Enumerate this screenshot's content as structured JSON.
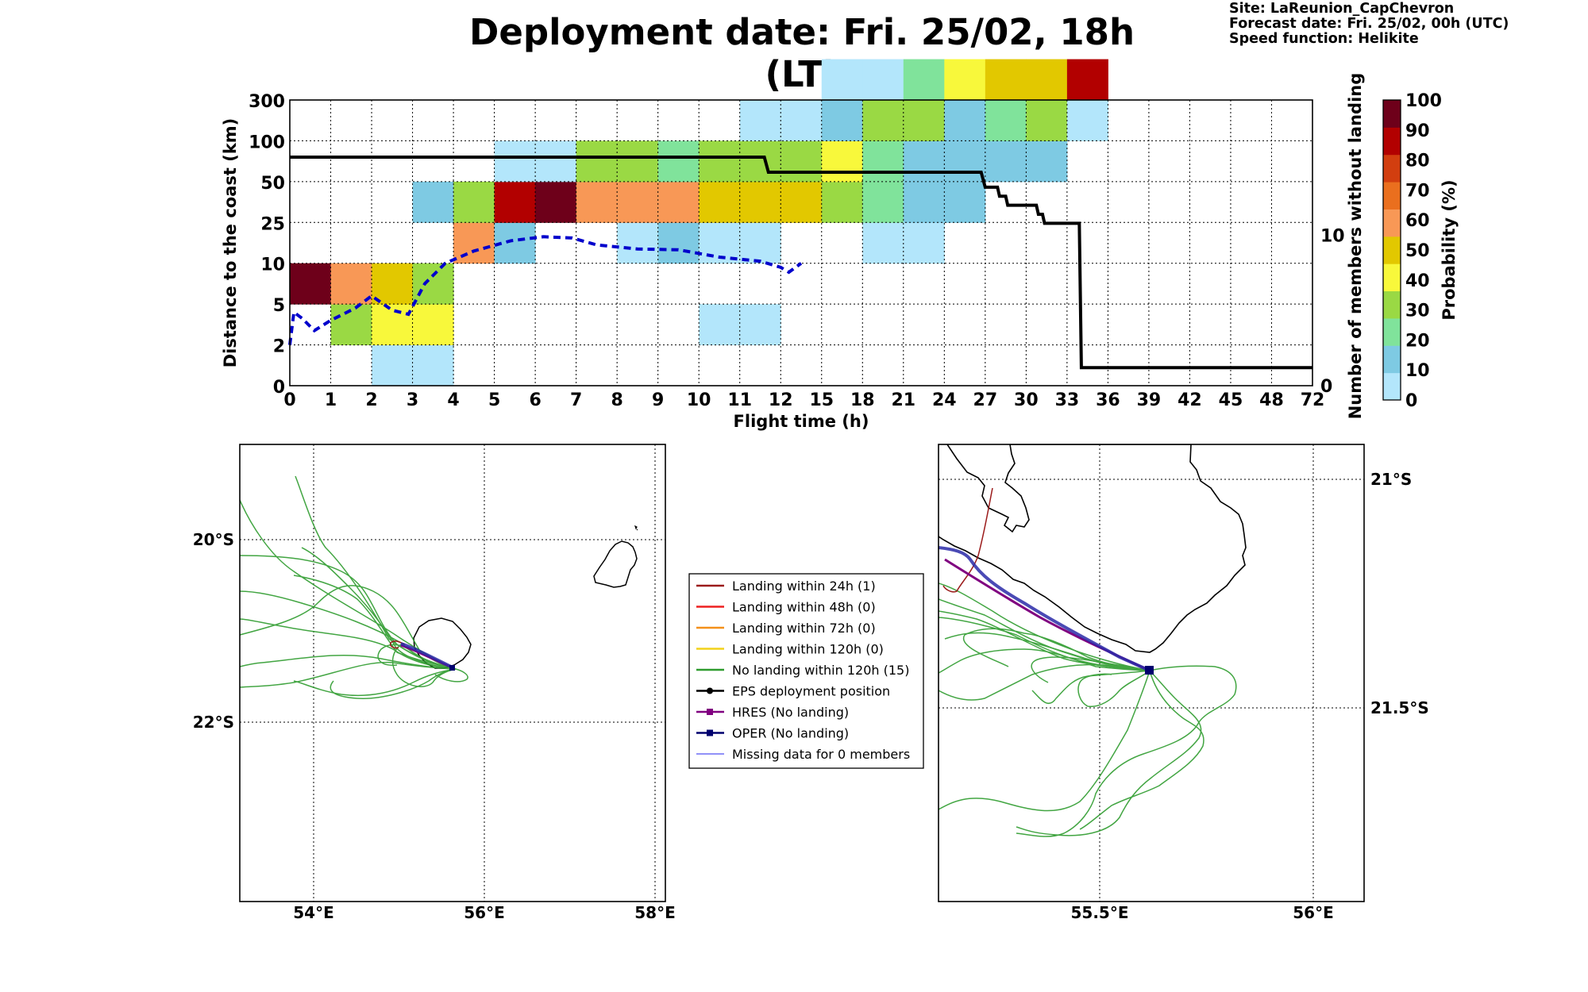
{
  "header": {
    "title": "Deployment date: Fri. 25/02, 18h (LT)",
    "site": "Site: LaReunion_CapChevron",
    "forecast_date": "Forecast date: Fri. 25/02, 00h (UTC)",
    "speed_function": "Speed function: Helikite"
  },
  "colors": {
    "p0": "#b3e6fb",
    "p10": "#7ecae3",
    "p20": "#80e39b",
    "p30": "#9ad944",
    "p40": "#f8f83b",
    "p50": "#e2c800",
    "p60": "#f89856",
    "p70": "#ea6f1e",
    "p80": "#d23e0f",
    "p90": "#b20000",
    "p100": "#6e001a",
    "members_line": "#000000",
    "median_line": "#0000cc",
    "no_landing": "#2e9c2e",
    "landing_24h": "#9b1b1b",
    "hres": "#800080",
    "oper": "#00006e"
  },
  "chart_data": [
    {
      "type": "heatmap",
      "xlabel": "Flight time (h)",
      "ylabel": "Distance to the coast (km)",
      "y2label": "Number of members without landing",
      "colorbar_label": "Probability (%)",
      "x_ticks": [
        "0",
        "1",
        "2",
        "3",
        "4",
        "5",
        "6",
        "7",
        "8",
        "9",
        "10",
        "11",
        "12",
        "15",
        "18",
        "21",
        "24",
        "27",
        "30",
        "33",
        "36",
        "39",
        "42",
        "45",
        "48",
        "72"
      ],
      "y_ticks": [
        "0",
        "2",
        "5",
        "10",
        "25",
        "50",
        "100",
        "300"
      ],
      "y2_ticks": [
        "0",
        "10"
      ],
      "y2lim": [
        0,
        19
      ],
      "colorbar_ticks": [
        "0",
        "10",
        "20",
        "30",
        "40",
        "50",
        "60",
        "70",
        "80",
        "90",
        "100"
      ],
      "grid": true,
      "cells": [
        {
          "x": 0,
          "y": 2,
          "p": 100
        },
        {
          "x": 1,
          "y": 1,
          "p": 30
        },
        {
          "x": 1,
          "y": 2,
          "p": 60
        },
        {
          "x": 2,
          "y": 0,
          "p": 0
        },
        {
          "x": 2,
          "y": 1,
          "p": 40
        },
        {
          "x": 2,
          "y": 2,
          "p": 50
        },
        {
          "x": 3,
          "y": 0,
          "p": 0
        },
        {
          "x": 3,
          "y": 1,
          "p": 40
        },
        {
          "x": 3,
          "y": 2,
          "p": 30
        },
        {
          "x": 3,
          "y": 4,
          "p": 10
        },
        {
          "x": 4,
          "y": 3,
          "p": 60
        },
        {
          "x": 4,
          "y": 4,
          "p": 30
        },
        {
          "x": 5,
          "y": 3,
          "p": 10
        },
        {
          "x": 5,
          "y": 4,
          "p": 90
        },
        {
          "x": 5,
          "y": 5,
          "p": 0
        },
        {
          "x": 6,
          "y": 4,
          "p": 100
        },
        {
          "x": 6,
          "y": 5,
          "p": 0
        },
        {
          "x": 7,
          "y": 4,
          "p": 60
        },
        {
          "x": 7,
          "y": 5,
          "p": 30
        },
        {
          "x": 8,
          "y": 3,
          "p": 0
        },
        {
          "x": 8,
          "y": 4,
          "p": 60
        },
        {
          "x": 8,
          "y": 5,
          "p": 30
        },
        {
          "x": 9,
          "y": 3,
          "p": 10
        },
        {
          "x": 9,
          "y": 4,
          "p": 60
        },
        {
          "x": 9,
          "y": 5,
          "p": 20
        },
        {
          "x": 10,
          "y": 1,
          "p": 0
        },
        {
          "x": 10,
          "y": 3,
          "p": 0
        },
        {
          "x": 10,
          "y": 4,
          "p": 50
        },
        {
          "x": 10,
          "y": 5,
          "p": 30
        },
        {
          "x": 11,
          "y": 1,
          "p": 0
        },
        {
          "x": 11,
          "y": 3,
          "p": 0
        },
        {
          "x": 11,
          "y": 4,
          "p": 50
        },
        {
          "x": 11,
          "y": 5,
          "p": 30
        },
        {
          "x": 11,
          "y": 6,
          "p": 0
        },
        {
          "x": 12,
          "y": 4,
          "p": 50
        },
        {
          "x": 12,
          "y": 5,
          "p": 30
        },
        {
          "x": 12,
          "y": 6,
          "p": 0
        },
        {
          "x": 13,
          "y": 4,
          "p": 30
        },
        {
          "x": 13,
          "y": 5,
          "p": 40
        },
        {
          "x": 13,
          "y": 6,
          "p": 10
        },
        {
          "x": 13,
          "y": 7,
          "p": 0
        },
        {
          "x": 14,
          "y": 3,
          "p": 0
        },
        {
          "x": 14,
          "y": 4,
          "p": 20
        },
        {
          "x": 14,
          "y": 5,
          "p": 20
        },
        {
          "x": 14,
          "y": 6,
          "p": 30
        },
        {
          "x": 14,
          "y": 7,
          "p": 0
        },
        {
          "x": 15,
          "y": 3,
          "p": 0
        },
        {
          "x": 15,
          "y": 4,
          "p": 10
        },
        {
          "x": 15,
          "y": 5,
          "p": 10
        },
        {
          "x": 15,
          "y": 6,
          "p": 30
        },
        {
          "x": 15,
          "y": 7,
          "p": 20
        },
        {
          "x": 16,
          "y": 4,
          "p": 10
        },
        {
          "x": 16,
          "y": 5,
          "p": 10
        },
        {
          "x": 16,
          "y": 6,
          "p": 10
        },
        {
          "x": 16,
          "y": 7,
          "p": 40
        },
        {
          "x": 17,
          "y": 5,
          "p": 10
        },
        {
          "x": 17,
          "y": 6,
          "p": 20
        },
        {
          "x": 17,
          "y": 7,
          "p": 50
        },
        {
          "x": 18,
          "y": 5,
          "p": 10
        },
        {
          "x": 18,
          "y": 6,
          "p": 30
        },
        {
          "x": 18,
          "y": 7,
          "p": 50
        },
        {
          "x": 19,
          "y": 6,
          "p": 0
        },
        {
          "x": 19,
          "y": 7,
          "p": 90
        }
      ],
      "members_without_landing": [
        {
          "x": 0,
          "y": 15.2
        },
        {
          "x": 11.6,
          "y": 15.2
        },
        {
          "x": 11.7,
          "y": 14.2
        },
        {
          "x": 16.9,
          "y": 14.2
        },
        {
          "x": 17.0,
          "y": 13.2
        },
        {
          "x": 17.3,
          "y": 13.2
        },
        {
          "x": 17.35,
          "y": 12.6
        },
        {
          "x": 17.5,
          "y": 12.6
        },
        {
          "x": 17.55,
          "y": 12.0
        },
        {
          "x": 18.25,
          "y": 12.0
        },
        {
          "x": 18.3,
          "y": 11.4
        },
        {
          "x": 18.4,
          "y": 11.4
        },
        {
          "x": 18.45,
          "y": 10.8
        },
        {
          "x": 19.3,
          "y": 10.8
        },
        {
          "x": 19.35,
          "y": 1.2
        },
        {
          "x": 25,
          "y": 1.2
        }
      ],
      "median_distance": [
        {
          "x": 0,
          "y": 1.0
        },
        {
          "x": 0.1,
          "y": 1.8
        },
        {
          "x": 0.3,
          "y": 1.65
        },
        {
          "x": 0.6,
          "y": 1.35
        },
        {
          "x": 1.0,
          "y": 1.6
        },
        {
          "x": 1.3,
          "y": 1.75
        },
        {
          "x": 1.6,
          "y": 1.9
        },
        {
          "x": 2.0,
          "y": 2.2
        },
        {
          "x": 2.5,
          "y": 1.85
        },
        {
          "x": 2.9,
          "y": 1.75
        },
        {
          "x": 3.3,
          "y": 2.5
        },
        {
          "x": 3.8,
          "y": 3.0
        },
        {
          "x": 4.5,
          "y": 3.3
        },
        {
          "x": 5.4,
          "y": 3.55
        },
        {
          "x": 6.2,
          "y": 3.65
        },
        {
          "x": 6.9,
          "y": 3.62
        },
        {
          "x": 7.5,
          "y": 3.45
        },
        {
          "x": 8.5,
          "y": 3.35
        },
        {
          "x": 9.5,
          "y": 3.33
        },
        {
          "x": 10.5,
          "y": 3.15
        },
        {
          "x": 11.5,
          "y": 3.05
        },
        {
          "x": 12.0,
          "y": 2.9
        },
        {
          "x": 12.2,
          "y": 2.78
        },
        {
          "x": 12.5,
          "y": 3.0
        }
      ]
    },
    {
      "type": "map",
      "lon_ticks": [
        "54°E",
        "56°E",
        "58°E"
      ],
      "lat_ticks": [
        "20°S",
        "22°S"
      ]
    },
    {
      "type": "map",
      "lon_ticks": [
        "55.5°E",
        "56°E"
      ],
      "lat_ticks": [
        "21°S",
        "21.5°S"
      ]
    }
  ],
  "legend": {
    "items": [
      {
        "label": "Landing within 24h (1)",
        "color": "#9b1b1b",
        "style": "line"
      },
      {
        "label": "Landing within 48h (0)",
        "color": "#ee2020",
        "style": "line"
      },
      {
        "label": "Landing within 72h (0)",
        "color": "#f4901a",
        "style": "line"
      },
      {
        "label": "Landing within 120h (0)",
        "color": "#f2d21a",
        "style": "line"
      },
      {
        "label": "No landing within 120h (15)",
        "color": "#2e9c2e",
        "style": "line"
      },
      {
        "label": "EPS deployment position",
        "color": "#000000",
        "style": "dot"
      },
      {
        "label": "HRES (No landing)",
        "color": "#800080",
        "style": "square"
      },
      {
        "label": "OPER (No landing)",
        "color": "#00006e",
        "style": "square"
      },
      {
        "label": "Missing data for 0 members",
        "color": "#4f4ff4",
        "style": "thin"
      }
    ]
  }
}
